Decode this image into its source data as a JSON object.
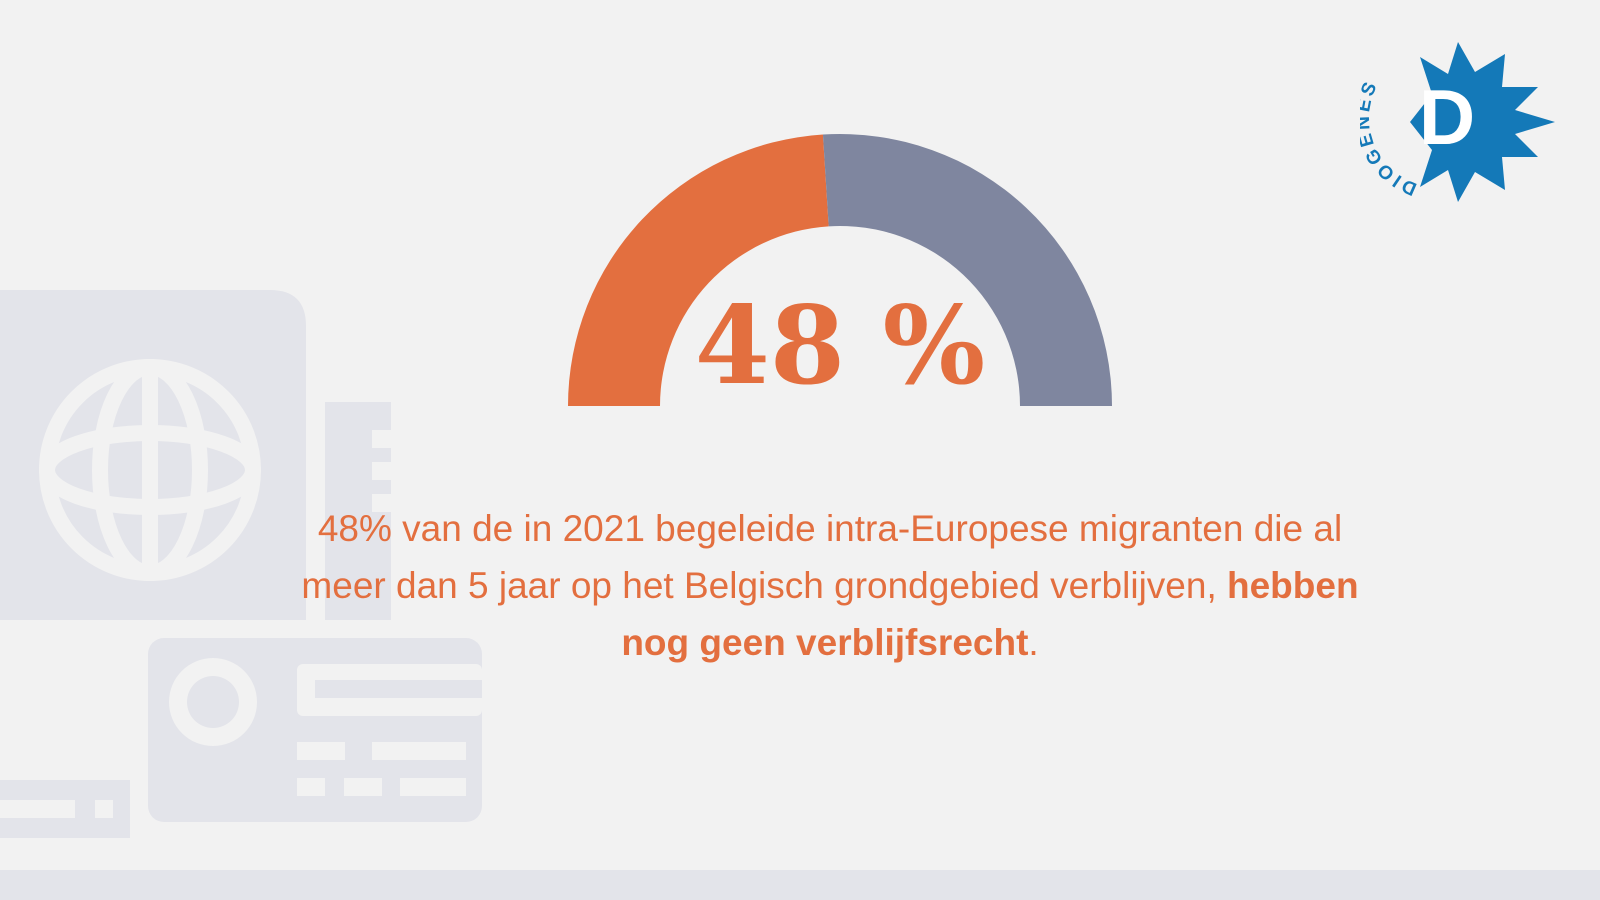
{
  "chart_data": {
    "type": "pie",
    "style": "half-donut gauge",
    "center_label": "48 %",
    "slices": [
      {
        "value": 48,
        "color": "#e36f3f"
      },
      {
        "value": 52,
        "color": "#7f869f"
      }
    ]
  },
  "caption": {
    "text_before": "48% van de in 2021 begeleide intra-Europese migranten die al meer dan 5 jaar op het Belgisch grondgebied verblijven, ",
    "text_emphasis": "hebben nog geen verblijfsrecht",
    "text_after": "."
  },
  "logo": {
    "wordmark": "DIOGENES",
    "initial": "D",
    "color": "#1479b8"
  },
  "colors": {
    "accent": "#e36f3f",
    "secondary": "#7f869f",
    "background": "#f2f2f2",
    "illustration": "#e3e4ea"
  },
  "icons": [
    "passport-icon",
    "id-card-icon",
    "globe-icon"
  ]
}
